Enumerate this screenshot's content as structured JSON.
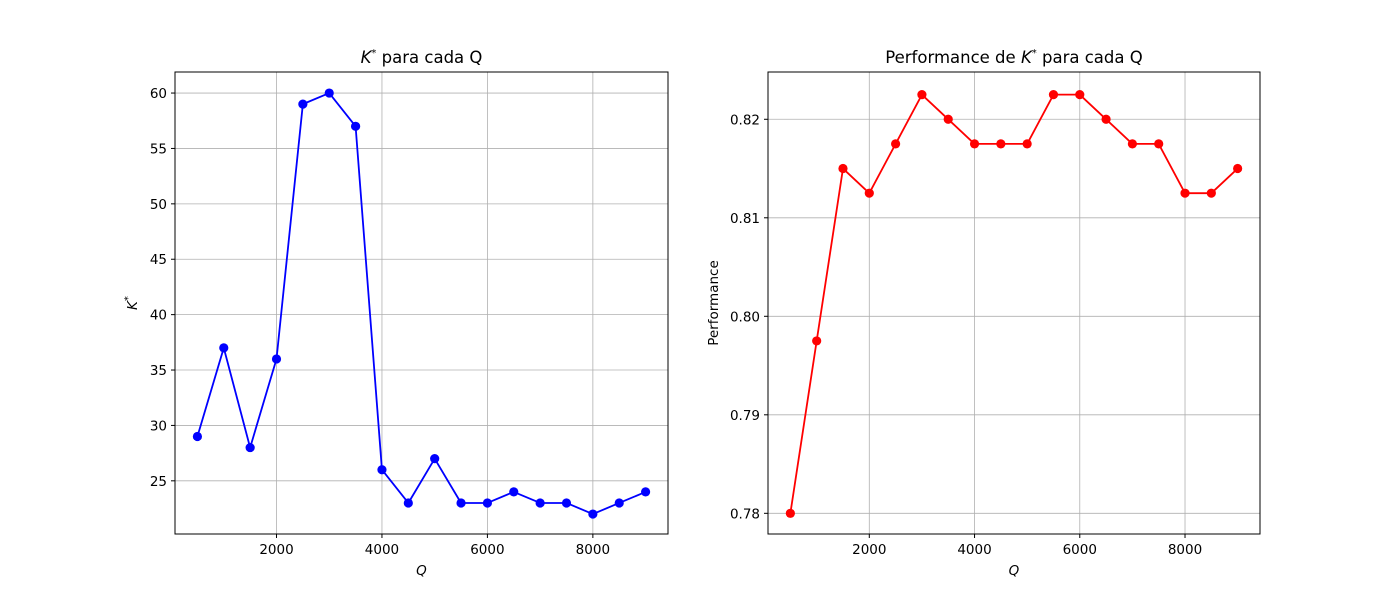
{
  "chart_data": [
    {
      "type": "line",
      "title_prefix": "",
      "title_symbol": "K",
      "title_superscript": "*",
      "title_suffix": " para cada Q",
      "xlabel": "Q",
      "ylabel_symbol": "K",
      "ylabel_superscript": "*",
      "x": [
        500,
        1000,
        1500,
        2000,
        2500,
        3000,
        3500,
        4000,
        4500,
        5000,
        5500,
        6000,
        6500,
        7000,
        7500,
        8000,
        8500,
        9000
      ],
      "series": [
        {
          "values": [
            29,
            37,
            28,
            36,
            59,
            60,
            57,
            26,
            23,
            27,
            23,
            23,
            24,
            23,
            23,
            22,
            23,
            24
          ],
          "color": "#0000ff",
          "marker": "circle"
        }
      ],
      "xlim": [
        75,
        9425
      ],
      "ylim": [
        20.2,
        61.9
      ],
      "xticks": [
        2000,
        4000,
        6000,
        8000
      ],
      "xtick_labels": [
        "2000",
        "4000",
        "6000",
        "8000"
      ],
      "yticks": [
        25,
        30,
        35,
        40,
        45,
        50,
        55,
        60
      ],
      "ytick_labels": [
        "25",
        "30",
        "35",
        "40",
        "45",
        "50",
        "55",
        "60"
      ],
      "grid": true
    },
    {
      "type": "line",
      "title_prefix": "Performance de ",
      "title_symbol": "K",
      "title_superscript": "*",
      "title_suffix": " para cada Q",
      "xlabel": "Q",
      "ylabel": "Performance",
      "x": [
        500,
        1000,
        1500,
        2000,
        2500,
        3000,
        3500,
        4000,
        4500,
        5000,
        5500,
        6000,
        6500,
        7000,
        7500,
        8000,
        8500,
        9000
      ],
      "series": [
        {
          "values": [
            0.78,
            0.7975,
            0.815,
            0.8125,
            0.8175,
            0.8225,
            0.82,
            0.8175,
            0.8175,
            0.8175,
            0.8225,
            0.8225,
            0.82,
            0.8175,
            0.8175,
            0.8125,
            0.8125,
            0.815
          ],
          "color": "#ff0000",
          "marker": "circle"
        }
      ],
      "xlim": [
        75,
        9425
      ],
      "ylim": [
        0.7779,
        0.8248
      ],
      "xticks": [
        2000,
        4000,
        6000,
        8000
      ],
      "xtick_labels": [
        "2000",
        "4000",
        "6000",
        "8000"
      ],
      "yticks": [
        0.78,
        0.79,
        0.8,
        0.81,
        0.82
      ],
      "ytick_labels": [
        "0.78",
        "0.79",
        "0.80",
        "0.81",
        "0.82"
      ],
      "grid": true
    }
  ]
}
